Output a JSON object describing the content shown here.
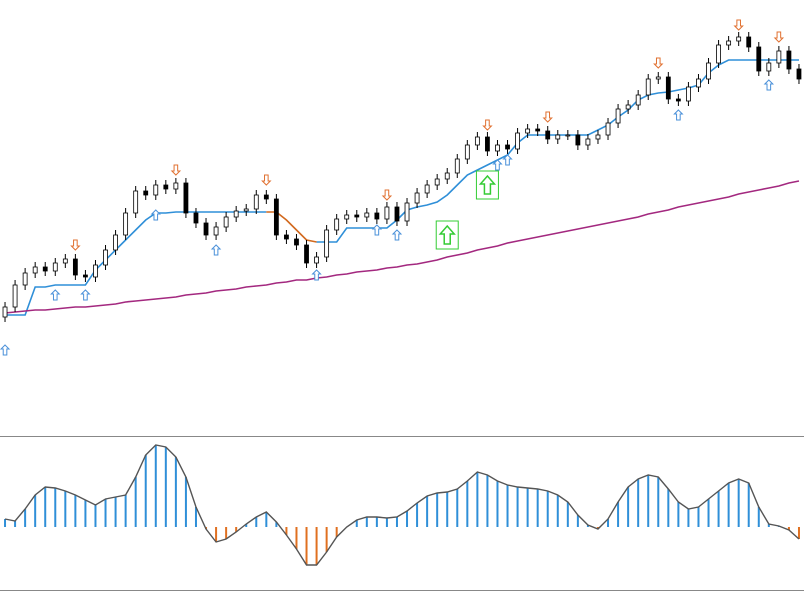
{
  "chart_data": [
    {
      "type": "candlestick",
      "open": [
        118,
        128,
        150,
        162,
        168,
        164,
        172,
        176,
        160,
        158,
        170,
        185,
        200,
        222,
        244,
        240,
        250,
        246,
        252,
        222,
        212,
        200,
        208,
        218,
        224,
        226,
        240,
        236,
        200,
        196,
        190,
        172,
        178,
        205,
        216,
        220,
        218,
        222,
        216,
        228,
        214,
        232,
        242,
        250,
        256,
        262,
        276,
        290,
        298,
        284,
        290,
        286,
        302,
        306,
        304,
        296,
        300,
        300,
        290,
        296,
        300,
        312,
        326,
        330,
        340,
        356,
        358,
        336,
        334,
        348,
        356,
        372,
        390,
        394,
        398,
        388,
        364,
        372,
        384,
        366
      ],
      "high": [
        133,
        155,
        167,
        173,
        173,
        177,
        181,
        181,
        165,
        175,
        190,
        205,
        227,
        249,
        249,
        255,
        255,
        257,
        257,
        227,
        217,
        213,
        223,
        229,
        231,
        245,
        245,
        241,
        205,
        201,
        195,
        183,
        210,
        221,
        225,
        225,
        227,
        227,
        233,
        233,
        237,
        247,
        255,
        261,
        267,
        281,
        295,
        303,
        303,
        295,
        295,
        307,
        311,
        311,
        309,
        305,
        305,
        305,
        301,
        305,
        317,
        331,
        335,
        345,
        361,
        363,
        363,
        341,
        353,
        361,
        377,
        395,
        399,
        403,
        403,
        393,
        377,
        389,
        389,
        371
      ],
      "low": [
        113,
        123,
        145,
        157,
        159,
        159,
        167,
        155,
        153,
        153,
        165,
        180,
        195,
        217,
        235,
        235,
        241,
        241,
        217,
        207,
        195,
        195,
        203,
        213,
        219,
        221,
        231,
        195,
        191,
        185,
        167,
        167,
        173,
        200,
        211,
        213,
        213,
        211,
        211,
        209,
        209,
        227,
        237,
        245,
        251,
        257,
        271,
        285,
        279,
        279,
        281,
        281,
        297,
        299,
        291,
        291,
        295,
        285,
        285,
        291,
        295,
        307,
        321,
        325,
        335,
        351,
        331,
        329,
        329,
        343,
        351,
        367,
        385,
        389,
        383,
        359,
        359,
        367,
        361,
        351
      ],
      "close": [
        128,
        150,
        162,
        168,
        164,
        172,
        176,
        160,
        158,
        170,
        185,
        200,
        222,
        244,
        240,
        250,
        246,
        252,
        222,
        212,
        200,
        208,
        218,
        224,
        226,
        240,
        236,
        200,
        196,
        190,
        172,
        178,
        205,
        216,
        220,
        218,
        222,
        216,
        228,
        214,
        232,
        242,
        250,
        256,
        262,
        276,
        290,
        298,
        284,
        290,
        286,
        302,
        306,
        304,
        296,
        300,
        300,
        290,
        296,
        300,
        312,
        326,
        330,
        340,
        356,
        358,
        336,
        334,
        348,
        356,
        372,
        390,
        394,
        398,
        388,
        364,
        372,
        384,
        366,
        356
      ],
      "up_color": "#ffffff",
      "down_color": "#000000",
      "wick_color": "#000000",
      "ylim": [
        0,
        435
      ],
      "series": [
        {
          "type": "line",
          "color": "#2f8fd8",
          "values": [
            120,
            120,
            120,
            148,
            148,
            150,
            150,
            150,
            150,
            165,
            175,
            185,
            195,
            205,
            215,
            222,
            222,
            223,
            223,
            223,
            223,
            223,
            223,
            223,
            223,
            223,
            223,
            null,
            null,
            null,
            null,
            193,
            193,
            193,
            207,
            207,
            207,
            207,
            207,
            215,
            225,
            228,
            230,
            233,
            240,
            250,
            260,
            265,
            270,
            275,
            280,
            292,
            300,
            300,
            300,
            300,
            300,
            300,
            300,
            305,
            310,
            318,
            325,
            335,
            340,
            342,
            343,
            345,
            347,
            350,
            362,
            370,
            375,
            375,
            375,
            375,
            375,
            375,
            375,
            375
          ]
        },
        {
          "type": "line",
          "color": "#d2691e",
          "values": [
            null,
            null,
            null,
            null,
            null,
            null,
            null,
            null,
            null,
            null,
            null,
            null,
            null,
            null,
            null,
            null,
            null,
            null,
            null,
            null,
            null,
            null,
            null,
            null,
            null,
            null,
            223,
            223,
            215,
            205,
            195,
            193,
            null,
            null,
            null,
            null,
            null,
            null,
            null,
            null,
            null,
            null,
            null,
            null,
            null,
            null,
            null,
            null,
            null,
            null,
            null,
            null,
            null,
            null,
            null,
            null,
            null,
            null,
            null,
            null,
            null,
            null,
            null,
            null,
            null,
            null,
            null,
            null,
            null,
            null,
            null,
            null,
            null,
            null,
            null,
            null,
            null,
            null,
            null,
            null
          ]
        },
        {
          "type": "line",
          "color": "#a3287f",
          "values": [
            122,
            123,
            124,
            125,
            125,
            126,
            127,
            128,
            128,
            129,
            130,
            131,
            133,
            134,
            135,
            136,
            137,
            138,
            140,
            141,
            142,
            144,
            145,
            146,
            148,
            149,
            150,
            152,
            153,
            155,
            155,
            157,
            158,
            160,
            161,
            163,
            164,
            165,
            167,
            168,
            170,
            171,
            173,
            175,
            178,
            180,
            182,
            185,
            187,
            189,
            192,
            194,
            196,
            198,
            200,
            202,
            204,
            206,
            208,
            210,
            212,
            214,
            216,
            218,
            221,
            223,
            225,
            228,
            230,
            232,
            234,
            236,
            238,
            241,
            243,
            245,
            247,
            249,
            252,
            254
          ]
        },
        {
          "type": "arrow-up",
          "color": "#4a90d9",
          "values": [
            85,
            null,
            null,
            null,
            null,
            140,
            null,
            null,
            140,
            null,
            null,
            null,
            null,
            null,
            null,
            220,
            null,
            null,
            null,
            null,
            null,
            185,
            null,
            null,
            null,
            null,
            null,
            null,
            null,
            null,
            null,
            160,
            null,
            null,
            null,
            null,
            null,
            205,
            null,
            200,
            null,
            null,
            null,
            null,
            null,
            null,
            null,
            null,
            null,
            270,
            275,
            null,
            null,
            null,
            null,
            null,
            null,
            null,
            null,
            null,
            null,
            null,
            null,
            null,
            null,
            null,
            null,
            320,
            null,
            null,
            null,
            null,
            null,
            null,
            null,
            null,
            350,
            null,
            null,
            null
          ]
        },
        {
          "type": "arrow-down",
          "color": "#e07030",
          "values": [
            null,
            null,
            null,
            null,
            null,
            null,
            null,
            190,
            null,
            null,
            null,
            null,
            null,
            null,
            null,
            null,
            null,
            265,
            null,
            null,
            null,
            null,
            null,
            null,
            null,
            null,
            255,
            null,
            null,
            null,
            null,
            null,
            null,
            null,
            null,
            null,
            null,
            null,
            240,
            null,
            null,
            null,
            null,
            null,
            null,
            null,
            null,
            null,
            310,
            null,
            null,
            null,
            null,
            null,
            318,
            null,
            null,
            null,
            null,
            null,
            null,
            null,
            null,
            null,
            null,
            372,
            null,
            null,
            null,
            null,
            null,
            null,
            null,
            410,
            null,
            null,
            null,
            398,
            null,
            null
          ]
        },
        {
          "type": "signal-up",
          "color": "#33cc33",
          "values": [
            null,
            null,
            null,
            null,
            null,
            null,
            null,
            null,
            null,
            null,
            null,
            null,
            null,
            null,
            null,
            null,
            null,
            null,
            null,
            null,
            null,
            null,
            null,
            null,
            null,
            null,
            null,
            null,
            null,
            null,
            null,
            null,
            null,
            null,
            null,
            null,
            null,
            null,
            null,
            null,
            null,
            null,
            null,
            null,
            200,
            null,
            null,
            null,
            250,
            null,
            null,
            null,
            null,
            null,
            null,
            null,
            null,
            null,
            null,
            null,
            null,
            null,
            null,
            null,
            null,
            null,
            null,
            null,
            null,
            null,
            null,
            null,
            null,
            null,
            null,
            null,
            null,
            null,
            null,
            null
          ]
        }
      ]
    },
    {
      "type": "histogram",
      "values": [
        8,
        6,
        18,
        32,
        40,
        39,
        36,
        32,
        27,
        22,
        28,
        30,
        32,
        50,
        72,
        82,
        80,
        70,
        50,
        20,
        -2,
        -15,
        -12,
        -5,
        3,
        10,
        15,
        5,
        -8,
        -22,
        -38,
        -38,
        -25,
        -10,
        0,
        7,
        10,
        10,
        9,
        10,
        16,
        24,
        31,
        34,
        35,
        38,
        46,
        55,
        52,
        46,
        42,
        40,
        39,
        38,
        36,
        32,
        25,
        12,
        2,
        -2,
        8,
        25,
        40,
        48,
        52,
        50,
        38,
        25,
        18,
        20,
        28,
        36,
        44,
        48,
        44,
        20,
        3,
        1,
        -3,
        -12
      ],
      "positive_color": "#2f8fd8",
      "negative_color": "#e07020",
      "outline_color": "#555555",
      "ylim": [
        -63,
        90
      ]
    }
  ]
}
